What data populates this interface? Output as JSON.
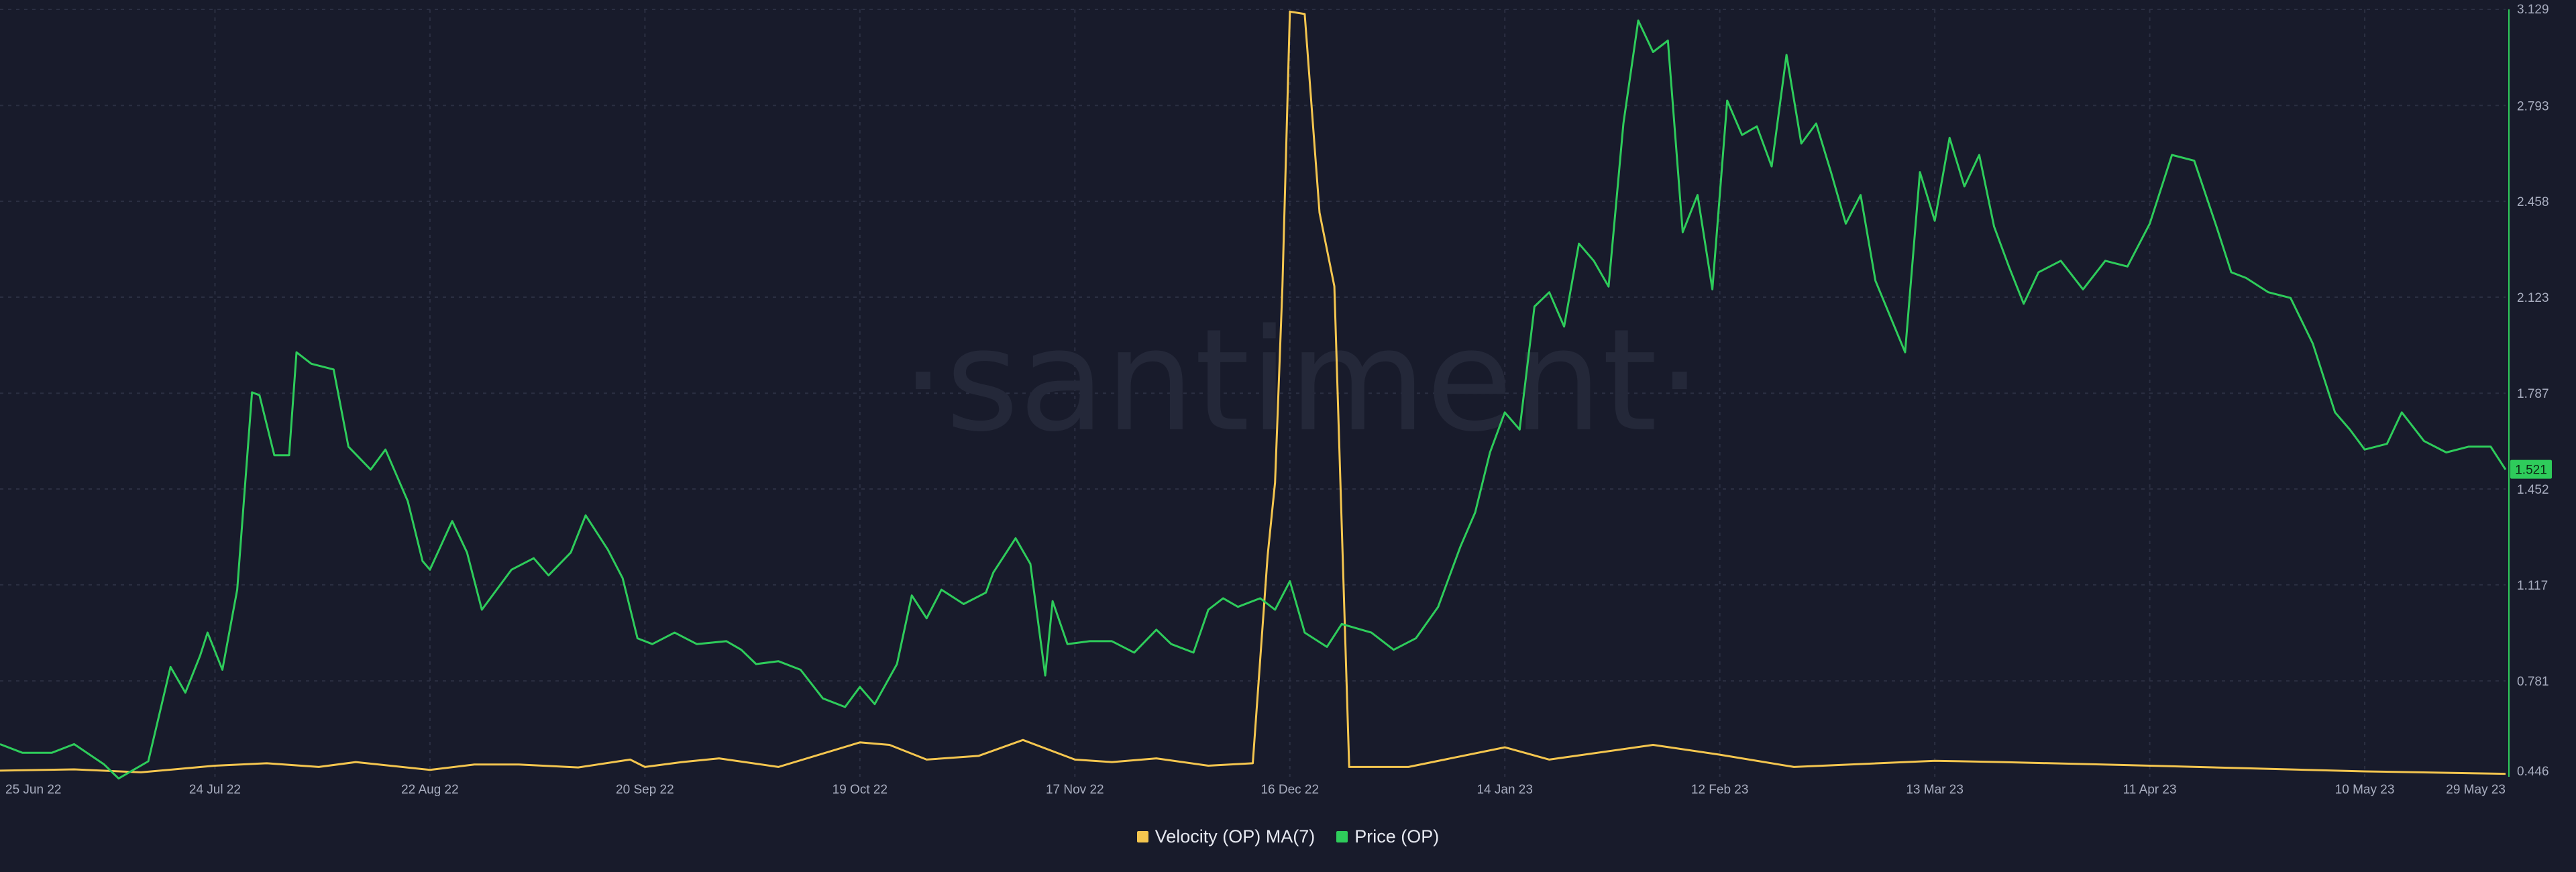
{
  "watermark": "·santiment·",
  "colors": {
    "background": "#181b2b",
    "grid": "#2b2f42",
    "velocity": "#f4c64f",
    "price": "#2ecc5b",
    "axis_text": "#a8adbf",
    "price_badge_text": "#0c2a14"
  },
  "chart_data": {
    "type": "line",
    "x_ticks": [
      "25 Jun 22",
      "24 Jul 22",
      "22 Aug 22",
      "20 Sep 22",
      "19 Oct 22",
      "17 Nov 22",
      "16 Dec 22",
      "14 Jan 23",
      "12 Feb 23",
      "13 Mar 23",
      "11 Apr 23",
      "10 May 23",
      "29 May 23"
    ],
    "y_right_ticks": [
      "3.129",
      "2.793",
      "2.458",
      "2.123",
      "1.787",
      "1.452",
      "1.117",
      "0.781",
      "0.446"
    ],
    "ylim_price": [
      0.446,
      3.129
    ],
    "ylim_velocity": [
      0,
      3.129
    ],
    "x_range": [
      "25 Jun 22",
      "29 May 23"
    ],
    "grid": true,
    "legend_position": "bottom-center",
    "current_price_label": "1.521",
    "series": [
      {
        "name": "Velocity (OP) MA(7)",
        "color": "#f4c64f",
        "points": [
          [
            "25 Jun 22",
            0.025
          ],
          [
            "5 Jul 22",
            0.03
          ],
          [
            "14 Jul 22",
            0.018
          ],
          [
            "24 Jul 22",
            0.045
          ],
          [
            "31 Jul 22",
            0.055
          ],
          [
            "7 Aug 22",
            0.04
          ],
          [
            "12 Aug 22",
            0.06
          ],
          [
            "22 Aug 22",
            0.028
          ],
          [
            "28 Aug 22",
            0.05
          ],
          [
            "3 Sep 22",
            0.05
          ],
          [
            "11 Sep 22",
            0.038
          ],
          [
            "18 Sep 22",
            0.07
          ],
          [
            "20 Sep 22",
            0.04
          ],
          [
            "25 Sep 22",
            0.06
          ],
          [
            "30 Sep 22",
            0.075
          ],
          [
            "8 Oct 22",
            0.04
          ],
          [
            "19 Oct 22",
            0.14
          ],
          [
            "23 Oct 22",
            0.13
          ],
          [
            "28 Oct 22",
            0.07
          ],
          [
            "4 Nov 22",
            0.085
          ],
          [
            "10 Nov 22",
            0.15
          ],
          [
            "17 Nov 22",
            0.07
          ],
          [
            "22 Nov 22",
            0.06
          ],
          [
            "28 Nov 22",
            0.075
          ],
          [
            "5 Dec 22",
            0.045
          ],
          [
            "11 Dec 22",
            0.055
          ],
          [
            "13 Dec 22",
            0.9
          ],
          [
            "14 Dec 22",
            1.2
          ],
          [
            "15 Dec 22",
            2.0
          ],
          [
            "16 Dec 22",
            3.12
          ],
          [
            "18 Dec 22",
            3.11
          ],
          [
            "20 Dec 22",
            2.3
          ],
          [
            "22 Dec 22",
            2.0
          ],
          [
            "24 Dec 22",
            0.04
          ],
          [
            "1 Jan 23",
            0.04
          ],
          [
            "14 Jan 23",
            0.12
          ],
          [
            "20 Jan 23",
            0.07
          ],
          [
            "3 Feb 23",
            0.13
          ],
          [
            "12 Feb 23",
            0.09
          ],
          [
            "22 Feb 23",
            0.04
          ],
          [
            "13 Mar 23",
            0.065
          ],
          [
            "22 Mar 23",
            0.06
          ],
          [
            "11 Apr 23",
            0.045
          ],
          [
            "10 May 23",
            0.022
          ],
          [
            "29 May 23",
            0.012
          ]
        ]
      },
      {
        "name": "Price (OP)",
        "color": "#2ecc5b",
        "points": [
          [
            "25 Jun 22",
            0.56
          ],
          [
            "28 Jun 22",
            0.53
          ],
          [
            "2 Jul 22",
            0.53
          ],
          [
            "5 Jul 22",
            0.56
          ],
          [
            "9 Jul 22",
            0.49
          ],
          [
            "11 Jul 22",
            0.44
          ],
          [
            "15 Jul 22",
            0.5
          ],
          [
            "18 Jul 22",
            0.83
          ],
          [
            "20 Jul 22",
            0.74
          ],
          [
            "22 Jul 22",
            0.87
          ],
          [
            "23 Jul 22",
            0.95
          ],
          [
            "25 Jul 22",
            0.82
          ],
          [
            "27 Jul 22",
            1.1
          ],
          [
            "29 Jul 22",
            1.79
          ],
          [
            "30 Jul 22",
            1.78
          ],
          [
            "1 Aug 22",
            1.57
          ],
          [
            "3 Aug 22",
            1.57
          ],
          [
            "4 Aug 22",
            1.93
          ],
          [
            "6 Aug 22",
            1.89
          ],
          [
            "9 Aug 22",
            1.87
          ],
          [
            "11 Aug 22",
            1.6
          ],
          [
            "14 Aug 22",
            1.52
          ],
          [
            "16 Aug 22",
            1.59
          ],
          [
            "19 Aug 22",
            1.41
          ],
          [
            "21 Aug 22",
            1.2
          ],
          [
            "22 Aug 22",
            1.17
          ],
          [
            "25 Aug 22",
            1.34
          ],
          [
            "27 Aug 22",
            1.23
          ],
          [
            "29 Aug 22",
            1.03
          ],
          [
            "31 Aug 22",
            1.1
          ],
          [
            "2 Sep 22",
            1.17
          ],
          [
            "5 Sep 22",
            1.21
          ],
          [
            "7 Sep 22",
            1.15
          ],
          [
            "10 Sep 22",
            1.23
          ],
          [
            "12 Sep 22",
            1.36
          ],
          [
            "15 Sep 22",
            1.24
          ],
          [
            "17 Sep 22",
            1.14
          ],
          [
            "19 Sep 22",
            0.93
          ],
          [
            "21 Sep 22",
            0.91
          ],
          [
            "24 Sep 22",
            0.95
          ],
          [
            "27 Sep 22",
            0.91
          ],
          [
            "1 Oct 22",
            0.92
          ],
          [
            "3 Oct 22",
            0.89
          ],
          [
            "5 Oct 22",
            0.84
          ],
          [
            "8 Oct 22",
            0.85
          ],
          [
            "11 Oct 22",
            0.82
          ],
          [
            "14 Oct 22",
            0.72
          ],
          [
            "17 Oct 22",
            0.69
          ],
          [
            "19 Oct 22",
            0.76
          ],
          [
            "21 Oct 22",
            0.7
          ],
          [
            "24 Oct 22",
            0.84
          ],
          [
            "26 Oct 22",
            1.08
          ],
          [
            "28 Oct 22",
            1.0
          ],
          [
            "30 Oct 22",
            1.1
          ],
          [
            "2 Nov 22",
            1.05
          ],
          [
            "5 Nov 22",
            1.09
          ],
          [
            "6 Nov 22",
            1.16
          ],
          [
            "9 Nov 22",
            1.28
          ],
          [
            "11 Nov 22",
            1.19
          ],
          [
            "13 Nov 22",
            0.8
          ],
          [
            "14 Nov 22",
            1.06
          ],
          [
            "16 Nov 22",
            0.91
          ],
          [
            "19 Nov 22",
            0.92
          ],
          [
            "22 Nov 22",
            0.92
          ],
          [
            "25 Nov 22",
            0.88
          ],
          [
            "28 Nov 22",
            0.96
          ],
          [
            "30 Nov 22",
            0.91
          ],
          [
            "3 Dec 22",
            0.88
          ],
          [
            "5 Dec 22",
            1.03
          ],
          [
            "7 Dec 22",
            1.07
          ],
          [
            "9 Dec 22",
            1.04
          ],
          [
            "12 Dec 22",
            1.07
          ],
          [
            "14 Dec 22",
            1.03
          ],
          [
            "16 Dec 22",
            1.13
          ],
          [
            "18 Dec 22",
            0.95
          ],
          [
            "21 Dec 22",
            0.9
          ],
          [
            "23 Dec 22",
            0.98
          ],
          [
            "27 Dec 22",
            0.95
          ],
          [
            "30 Dec 22",
            0.89
          ],
          [
            "2 Jan 23",
            0.93
          ],
          [
            "5 Jan 23",
            1.04
          ],
          [
            "8 Jan 23",
            1.25
          ],
          [
            "10 Jan 23",
            1.37
          ],
          [
            "12 Jan 23",
            1.58
          ],
          [
            "14 Jan 23",
            1.72
          ],
          [
            "16 Jan 23",
            1.66
          ],
          [
            "18 Jan 23",
            2.09
          ],
          [
            "20 Jan 23",
            2.14
          ],
          [
            "22 Jan 23",
            2.02
          ],
          [
            "24 Jan 23",
            2.31
          ],
          [
            "26 Jan 23",
            2.25
          ],
          [
            "28 Jan 23",
            2.16
          ],
          [
            "30 Jan 23",
            2.73
          ],
          [
            "1 Feb 23",
            3.09
          ],
          [
            "3 Feb 23",
            2.98
          ],
          [
            "5 Feb 23",
            3.02
          ],
          [
            "7 Feb 23",
            2.35
          ],
          [
            "9 Feb 23",
            2.48
          ],
          [
            "11 Feb 23",
            2.15
          ],
          [
            "13 Feb 23",
            2.81
          ],
          [
            "15 Feb 23",
            2.69
          ],
          [
            "17 Feb 23",
            2.72
          ],
          [
            "19 Feb 23",
            2.58
          ],
          [
            "21 Feb 23",
            2.97
          ],
          [
            "23 Feb 23",
            2.66
          ],
          [
            "25 Feb 23",
            2.73
          ],
          [
            "27 Feb 23",
            2.56
          ],
          [
            "1 Mar 23",
            2.38
          ],
          [
            "3 Mar 23",
            2.48
          ],
          [
            "5 Mar 23",
            2.18
          ],
          [
            "9 Mar 23",
            1.93
          ],
          [
            "11 Mar 23",
            2.56
          ],
          [
            "13 Mar 23",
            2.39
          ],
          [
            "15 Mar 23",
            2.68
          ],
          [
            "17 Mar 23",
            2.51
          ],
          [
            "19 Mar 23",
            2.62
          ],
          [
            "21 Mar 23",
            2.37
          ],
          [
            "23 Mar 23",
            2.23
          ],
          [
            "25 Mar 23",
            2.1
          ],
          [
            "27 Mar 23",
            2.21
          ],
          [
            "30 Mar 23",
            2.25
          ],
          [
            "2 Apr 23",
            2.15
          ],
          [
            "5 Apr 23",
            2.25
          ],
          [
            "8 Apr 23",
            2.23
          ],
          [
            "11 Apr 23",
            2.38
          ],
          [
            "14 Apr 23",
            2.62
          ],
          [
            "17 Apr 23",
            2.6
          ],
          [
            "20 Apr 23",
            2.37
          ],
          [
            "22 Apr 23",
            2.21
          ],
          [
            "24 Apr 23",
            2.19
          ],
          [
            "27 Apr 23",
            2.14
          ],
          [
            "30 Apr 23",
            2.12
          ],
          [
            "3 May 23",
            1.96
          ],
          [
            "6 May 23",
            1.72
          ],
          [
            "8 May 23",
            1.66
          ],
          [
            "10 May 23",
            1.59
          ],
          [
            "13 May 23",
            1.61
          ],
          [
            "15 May 23",
            1.72
          ],
          [
            "18 May 23",
            1.62
          ],
          [
            "21 May 23",
            1.58
          ],
          [
            "24 May 23",
            1.6
          ],
          [
            "27 May 23",
            1.6
          ],
          [
            "29 May 23",
            1.52
          ]
        ]
      }
    ]
  }
}
